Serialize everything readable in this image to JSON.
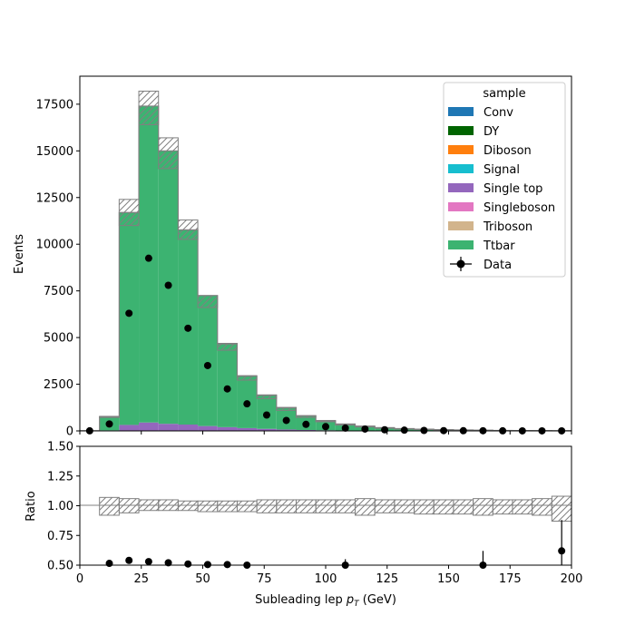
{
  "chart_data": [
    {
      "type": "bar",
      "subtype": "stacked-step-histogram",
      "xlabel": "Subleading lep p_T (GeV)",
      "ylabel": "Events",
      "xlim": [
        0,
        200
      ],
      "ylim": [
        0,
        19000
      ],
      "yticks": [
        "0",
        "2500",
        "5000",
        "7500",
        "10000",
        "12500",
        "15000",
        "17500"
      ],
      "xticks": [
        "0",
        "25",
        "50",
        "75",
        "100",
        "125",
        "150",
        "175",
        "200"
      ],
      "bin_edges": [
        0,
        8,
        16,
        24,
        32,
        40,
        48,
        56,
        64,
        72,
        80,
        88,
        96,
        104,
        112,
        120,
        128,
        136,
        144,
        152,
        160,
        168,
        176,
        184,
        192,
        200
      ],
      "legend": {
        "title": "sample",
        "position": "top-right",
        "entries": [
          {
            "name": "Conv",
            "color": "#1f77b4"
          },
          {
            "name": "DY",
            "color": "#006400"
          },
          {
            "name": "Diboson",
            "color": "#ff7f0e"
          },
          {
            "name": "Signal",
            "color": "#17becf"
          },
          {
            "name": "Single top",
            "color": "#9467bd"
          },
          {
            "name": "Singleboson",
            "color": "#e377c2"
          },
          {
            "name": "Triboson",
            "color": "#d2b48c"
          },
          {
            "name": "Ttbar",
            "color": "#3cb371"
          },
          {
            "name": "Data",
            "marker": "errorbar-dot",
            "color": "#000000"
          }
        ]
      },
      "series": [
        {
          "name": "Single top",
          "color": "#9467bd",
          "values": [
            0,
            30,
            320,
            450,
            380,
            340,
            260,
            200,
            150,
            110,
            75,
            50,
            35,
            25,
            18,
            12,
            9,
            6,
            5,
            4,
            3,
            2,
            2,
            1,
            1
          ]
        },
        {
          "name": "Ttbar",
          "color": "#3cb371",
          "values": [
            5,
            720,
            11380,
            16950,
            14620,
            10430,
            6990,
            4460,
            2780,
            1790,
            1155,
            750,
            495,
            325,
            222,
            148,
            101,
            74,
            55,
            41,
            27,
            20,
            15,
            10,
            7
          ]
        }
      ],
      "uncertainty_band": {
        "up": [
          6,
          780,
          12400,
          18200,
          15700,
          11300,
          7250,
          4690,
          2960,
          1930,
          1260,
          820,
          560,
          375,
          262,
          180,
          128,
          96,
          72,
          55,
          38,
          28,
          22,
          15,
          11
        ],
        "down": [
          4,
          720,
          11000,
          16400,
          14050,
          10260,
          6610,
          4320,
          2720,
          1730,
          1100,
          722,
          488,
          315,
          210,
          140,
          96,
          70,
          52,
          38,
          25,
          18,
          13,
          9,
          6
        ]
      },
      "data": {
        "x": [
          4,
          12,
          20,
          28,
          36,
          44,
          52,
          60,
          68,
          76,
          84,
          92,
          100,
          108,
          116,
          124,
          132,
          140,
          148,
          156,
          164,
          172,
          180,
          188,
          196
        ],
        "y": [
          5,
          370,
          6300,
          9250,
          7800,
          5500,
          3500,
          2250,
          1450,
          850,
          560,
          350,
          230,
          150,
          100,
          60,
          40,
          25,
          15,
          10,
          8,
          5,
          3,
          2,
          2
        ]
      }
    },
    {
      "type": "scatter",
      "subtype": "ratio-panel",
      "xlabel": "Subleading lep p_T (GeV)",
      "ylabel": "Ratio",
      "xlim": [
        0,
        200
      ],
      "ylim": [
        0.5,
        1.5
      ],
      "yticks": [
        "0.50",
        "0.75",
        "1.00",
        "1.25",
        "1.50"
      ],
      "xticks": [
        "0",
        "25",
        "50",
        "75",
        "100",
        "125",
        "150",
        "175",
        "200"
      ],
      "bin_edges": [
        0,
        8,
        16,
        24,
        32,
        40,
        48,
        56,
        64,
        72,
        80,
        88,
        96,
        104,
        112,
        120,
        128,
        136,
        144,
        152,
        160,
        168,
        176,
        184,
        192,
        200
      ],
      "band": {
        "up": [
          1.0,
          1.07,
          1.06,
          1.05,
          1.05,
          1.04,
          1.04,
          1.04,
          1.04,
          1.05,
          1.05,
          1.05,
          1.05,
          1.05,
          1.06,
          1.05,
          1.05,
          1.05,
          1.05,
          1.05,
          1.06,
          1.05,
          1.05,
          1.06,
          1.08
        ],
        "down": [
          1.0,
          0.92,
          0.94,
          0.96,
          0.96,
          0.96,
          0.95,
          0.95,
          0.95,
          0.94,
          0.94,
          0.94,
          0.94,
          0.94,
          0.92,
          0.94,
          0.94,
          0.93,
          0.93,
          0.93,
          0.92,
          0.93,
          0.93,
          0.92,
          0.87
        ]
      },
      "points": {
        "x": [
          12,
          20,
          28,
          36,
          44,
          52,
          60,
          68,
          108,
          164,
          196
        ],
        "y": [
          0.515,
          0.54,
          0.53,
          0.52,
          0.51,
          0.505,
          0.505,
          0.5,
          0.5,
          0.5,
          0.62
        ],
        "err": [
          0.01,
          0.01,
          0.01,
          0.01,
          0.01,
          0.01,
          0.01,
          0.01,
          0.05,
          0.12,
          0.26
        ]
      }
    }
  ]
}
